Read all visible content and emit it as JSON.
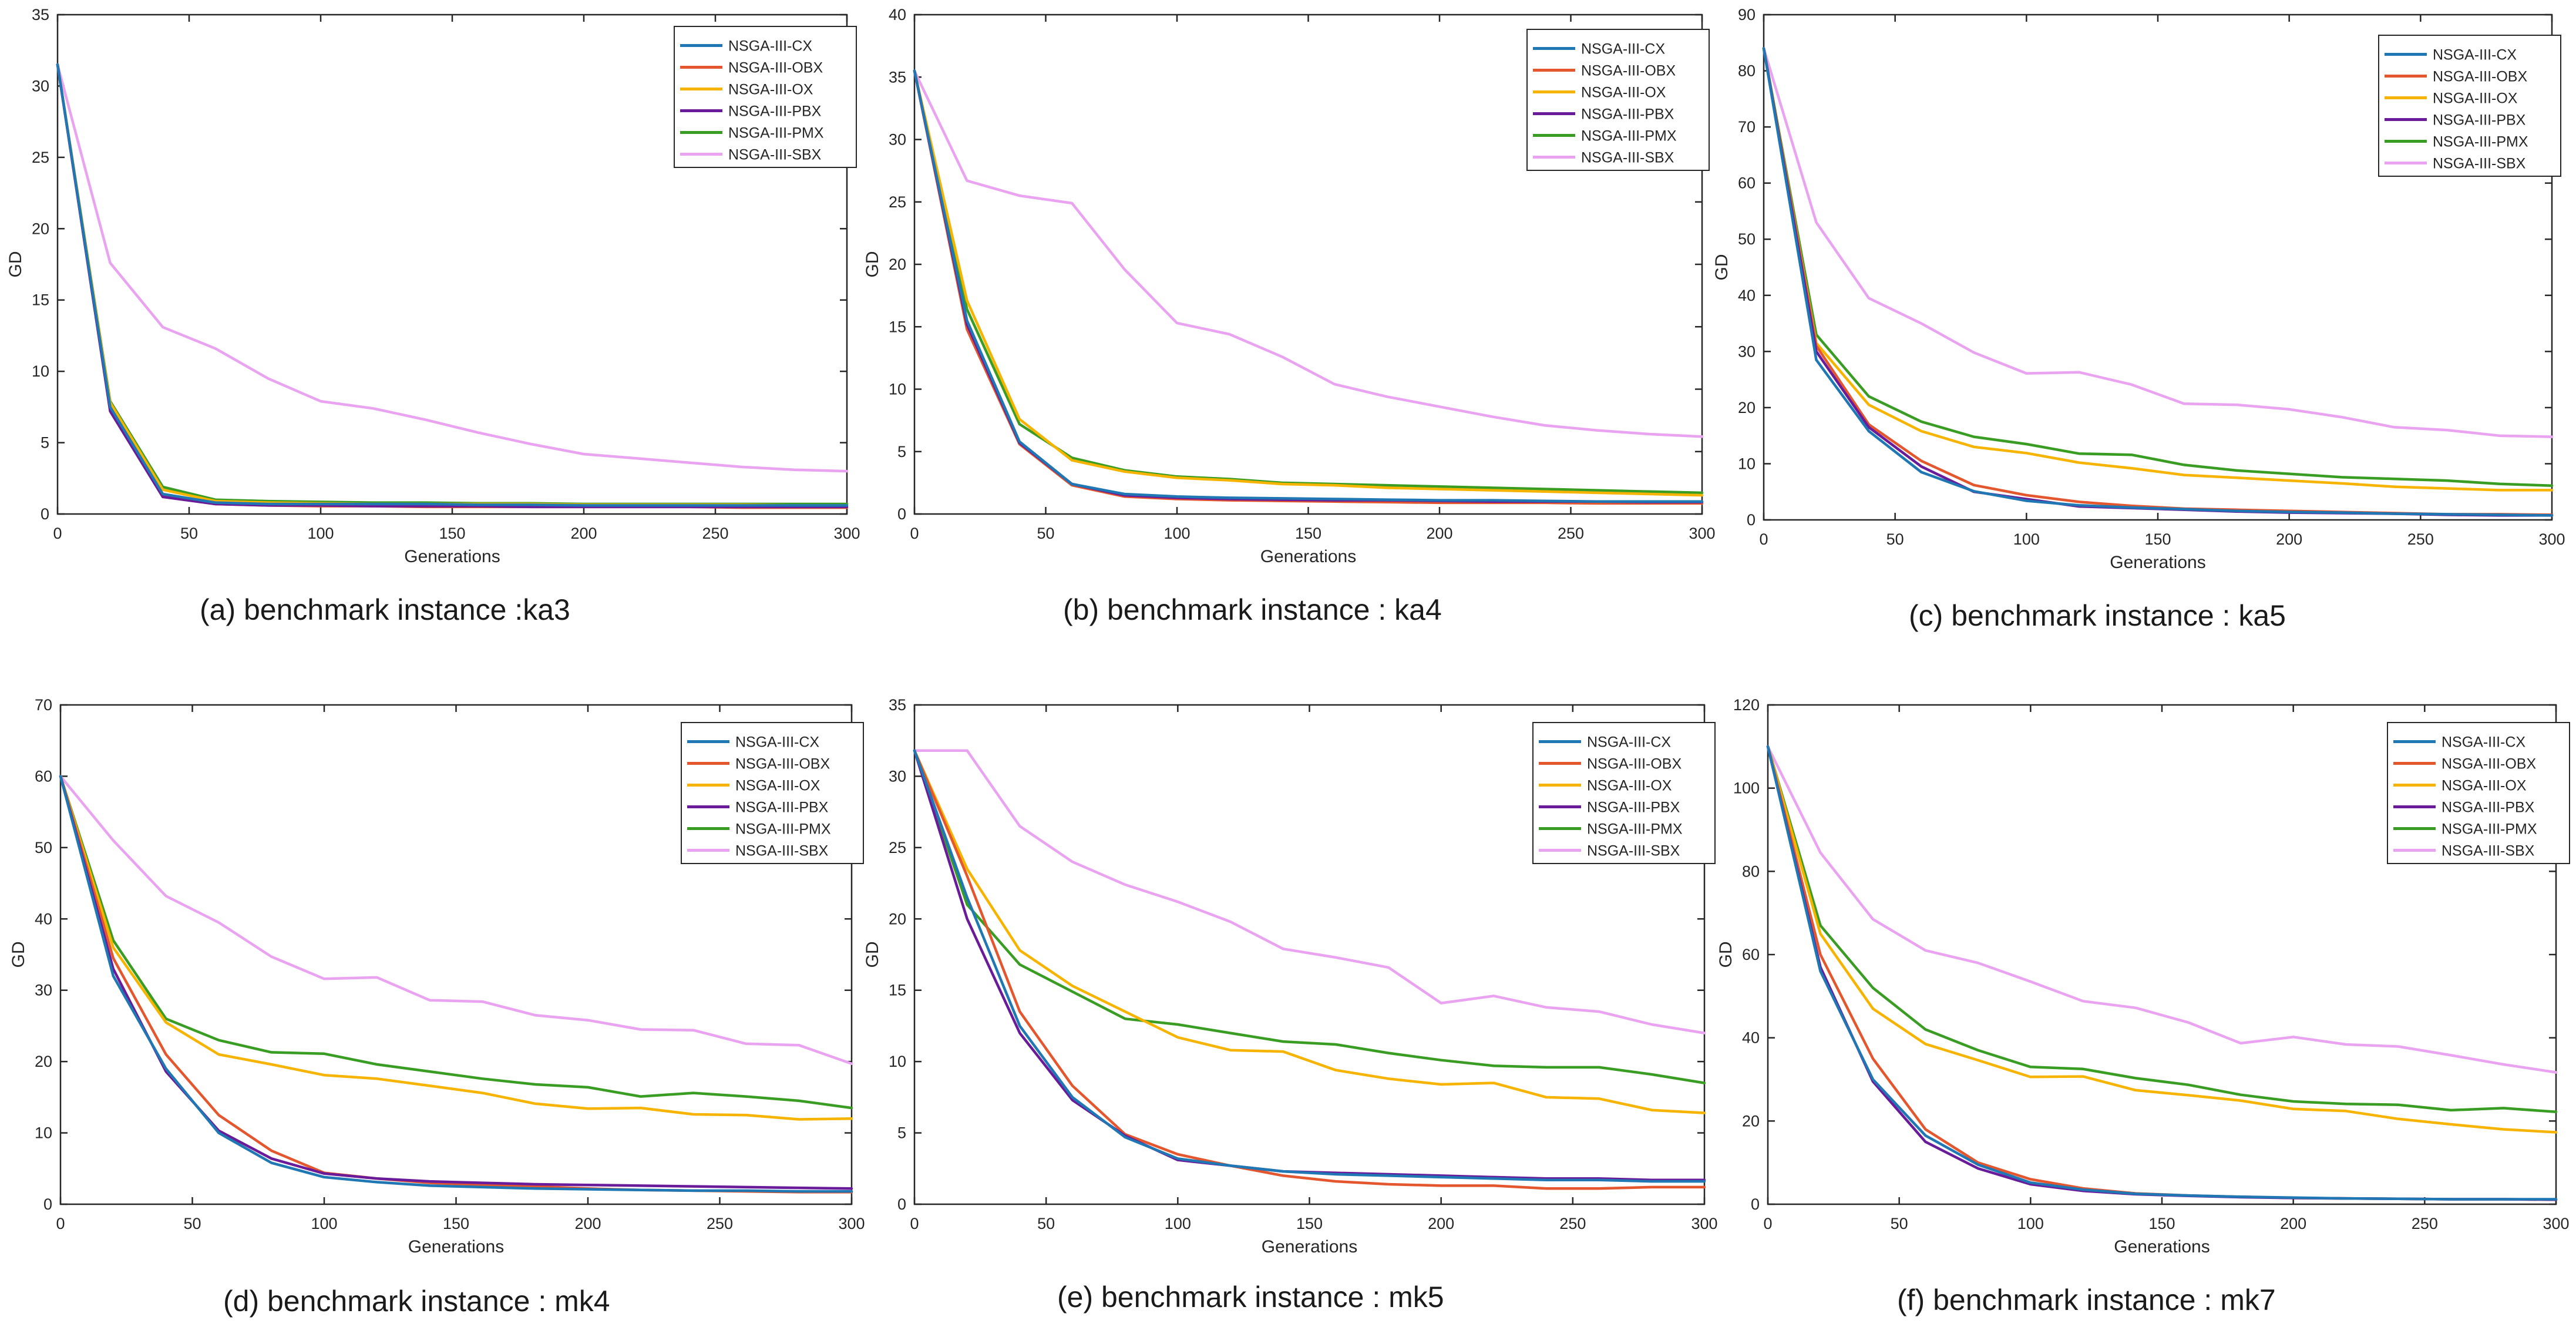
{
  "series_names": [
    "NSGA-III-CX",
    "NSGA-III-OBX",
    "NSGA-III-OX",
    "NSGA-III-PBX",
    "NSGA-III-PMX",
    "NSGA-III-SBX"
  ],
  "series_colors": [
    "#1f77b4",
    "#e4572e",
    "#f6b400",
    "#6a1b9a",
    "#3a9d23",
    "#e9a3f0"
  ],
  "chart_data": [
    {
      "type": "line",
      "caption": "(a)  benchmark instance :ka3",
      "xlabel": "Generations",
      "ylabel": "GD",
      "xlim": [
        0,
        300
      ],
      "ylim": [
        0,
        35
      ],
      "xticks": [
        0,
        50,
        100,
        150,
        200,
        250,
        300
      ],
      "yticks": [
        0,
        5,
        10,
        15,
        20,
        25,
        30,
        35
      ],
      "x": [
        0,
        20,
        40,
        60,
        80,
        100,
        120,
        140,
        160,
        180,
        200,
        220,
        240,
        260,
        280,
        300
      ],
      "series": [
        {
          "name": "NSGA-III-CX",
          "values": [
            31.5,
            7.5,
            1.4,
            0.8,
            0.7,
            0.7,
            0.7,
            0.7,
            0.65,
            0.65,
            0.6,
            0.6,
            0.6,
            0.6,
            0.6,
            0.6
          ]
        },
        {
          "name": "NSGA-III-OBX",
          "values": [
            31.5,
            7.3,
            1.3,
            0.7,
            0.6,
            0.55,
            0.55,
            0.5,
            0.5,
            0.5,
            0.5,
            0.5,
            0.5,
            0.45,
            0.45,
            0.45
          ]
        },
        {
          "name": "NSGA-III-OX",
          "values": [
            31.5,
            7.8,
            1.7,
            0.9,
            0.8,
            0.75,
            0.7,
            0.7,
            0.7,
            0.7,
            0.65,
            0.65,
            0.65,
            0.65,
            0.6,
            0.6
          ]
        },
        {
          "name": "NSGA-III-PBX",
          "values": [
            31.5,
            7.2,
            1.2,
            0.7,
            0.6,
            0.6,
            0.55,
            0.55,
            0.55,
            0.5,
            0.5,
            0.5,
            0.5,
            0.5,
            0.5,
            0.5
          ]
        },
        {
          "name": "NSGA-III-PMX",
          "values": [
            31.5,
            7.9,
            1.9,
            1.0,
            0.9,
            0.85,
            0.8,
            0.8,
            0.75,
            0.75,
            0.7,
            0.7,
            0.7,
            0.7,
            0.7,
            0.7
          ]
        },
        {
          "name": "NSGA-III-SBX",
          "values": [
            31.5,
            17.6,
            13.1,
            11.6,
            9.5,
            7.9,
            7.4,
            6.6,
            5.7,
            4.9,
            4.2,
            3.9,
            3.6,
            3.3,
            3.1,
            3.0
          ]
        }
      ]
    },
    {
      "type": "line",
      "caption": "(b)  benchmark instance : ka4",
      "xlabel": "Generations",
      "ylabel": "GD",
      "xlim": [
        0,
        300
      ],
      "ylim": [
        0,
        40
      ],
      "xticks": [
        0,
        50,
        100,
        150,
        200,
        250,
        300
      ],
      "yticks": [
        0,
        5,
        10,
        15,
        20,
        25,
        30,
        35,
        40
      ],
      "x": [
        0,
        20,
        40,
        60,
        80,
        100,
        120,
        140,
        160,
        180,
        200,
        220,
        240,
        260,
        280,
        300
      ],
      "series": [
        {
          "name": "NSGA-III-CX",
          "values": [
            35.5,
            15.5,
            5.8,
            2.4,
            1.6,
            1.4,
            1.3,
            1.25,
            1.2,
            1.15,
            1.1,
            1.1,
            1.05,
            1.0,
            1.0,
            1.0
          ]
        },
        {
          "name": "NSGA-III-OBX",
          "values": [
            35.5,
            14.8,
            5.6,
            2.3,
            1.4,
            1.2,
            1.1,
            1.05,
            1.0,
            0.95,
            0.9,
            0.9,
            0.9,
            0.85,
            0.85,
            0.85
          ]
        },
        {
          "name": "NSGA-III-OX",
          "values": [
            35.5,
            17.1,
            7.6,
            4.3,
            3.4,
            2.9,
            2.7,
            2.4,
            2.3,
            2.1,
            2.0,
            1.9,
            1.8,
            1.7,
            1.6,
            1.5
          ]
        },
        {
          "name": "NSGA-III-PBX",
          "values": [
            35.5,
            15.2,
            5.7,
            2.4,
            1.5,
            1.3,
            1.2,
            1.15,
            1.1,
            1.1,
            1.05,
            1.0,
            1.0,
            1.0,
            0.95,
            0.95
          ]
        },
        {
          "name": "NSGA-III-PMX",
          "values": [
            35.5,
            16.4,
            7.2,
            4.5,
            3.5,
            3.0,
            2.8,
            2.5,
            2.4,
            2.3,
            2.2,
            2.1,
            2.0,
            1.9,
            1.8,
            1.7
          ]
        },
        {
          "name": "NSGA-III-SBX",
          "values": [
            35.5,
            26.7,
            25.5,
            24.9,
            19.6,
            15.3,
            14.4,
            12.6,
            10.4,
            9.4,
            8.6,
            7.8,
            7.1,
            6.7,
            6.4,
            6.2
          ]
        }
      ]
    },
    {
      "type": "line",
      "caption": "(c)  benchmark instance : ka5",
      "xlabel": "Generations",
      "ylabel": "GD",
      "xlim": [
        0,
        300
      ],
      "ylim": [
        0,
        90
      ],
      "xticks": [
        0,
        50,
        100,
        150,
        200,
        250,
        300
      ],
      "yticks": [
        0,
        10,
        20,
        30,
        40,
        50,
        60,
        70,
        80,
        90
      ],
      "x": [
        0,
        20,
        40,
        60,
        80,
        100,
        120,
        140,
        160,
        180,
        200,
        220,
        240,
        260,
        280,
        300
      ],
      "series": [
        {
          "name": "NSGA-III-CX",
          "values": [
            84,
            28.5,
            15.8,
            8.5,
            5.1,
            3.4,
            2.6,
            2.2,
            1.9,
            1.6,
            1.4,
            1.3,
            1.1,
            1.0,
            0.9,
            0.8
          ]
        },
        {
          "name": "NSGA-III-OBX",
          "values": [
            84,
            31,
            17,
            10.5,
            6.2,
            4.4,
            3.2,
            2.5,
            2.0,
            1.8,
            1.6,
            1.4,
            1.2,
            1.0,
            1.0,
            0.9
          ]
        },
        {
          "name": "NSGA-III-OX",
          "values": [
            84,
            31.5,
            20.5,
            15.8,
            13.0,
            11.9,
            10.2,
            9.2,
            8.0,
            7.5,
            7.0,
            6.5,
            5.9,
            5.6,
            5.3,
            5.3
          ]
        },
        {
          "name": "NSGA-III-PBX",
          "values": [
            84,
            30,
            16.5,
            9.5,
            5.0,
            3.7,
            2.4,
            2.1,
            1.8,
            1.5,
            1.3,
            1.2,
            1.1,
            0.9,
            0.8,
            0.8
          ]
        },
        {
          "name": "NSGA-III-PMX",
          "values": [
            84,
            33,
            22,
            17.5,
            14.8,
            13.5,
            11.8,
            11.6,
            9.8,
            8.8,
            8.2,
            7.6,
            7.3,
            7.0,
            6.4,
            6.1
          ]
        },
        {
          "name": "NSGA-III-SBX",
          "values": [
            84,
            53,
            39.5,
            35,
            29.8,
            26.1,
            26.3,
            24.1,
            20.7,
            20.5,
            19.7,
            18.3,
            16.5,
            16.0,
            15.0,
            14.8
          ]
        }
      ]
    },
    {
      "type": "line",
      "caption": "(d)  benchmark instance : mk4",
      "xlabel": "Generations",
      "ylabel": "GD",
      "xlim": [
        0,
        300
      ],
      "ylim": [
        0,
        70
      ],
      "xticks": [
        0,
        50,
        100,
        150,
        200,
        250,
        300
      ],
      "yticks": [
        0,
        10,
        20,
        30,
        40,
        50,
        60,
        70
      ],
      "x": [
        0,
        20,
        40,
        60,
        80,
        100,
        120,
        140,
        160,
        180,
        200,
        220,
        240,
        260,
        280,
        300
      ],
      "series": [
        {
          "name": "NSGA-III-CX",
          "values": [
            60,
            32,
            19,
            10,
            5.8,
            3.8,
            3.1,
            2.6,
            2.4,
            2.2,
            2.1,
            2.0,
            1.9,
            1.9,
            1.8,
            1.8
          ]
        },
        {
          "name": "NSGA-III-OBX",
          "values": [
            60,
            34.5,
            21,
            12.5,
            7.5,
            4.4,
            3.6,
            3.0,
            2.7,
            2.5,
            2.2,
            2.0,
            1.9,
            1.8,
            1.7,
            1.7
          ]
        },
        {
          "name": "NSGA-III-OX",
          "values": [
            60,
            36,
            25.5,
            21,
            19.6,
            18.1,
            17.6,
            16.6,
            15.6,
            14.1,
            13.4,
            13.5,
            12.6,
            12.5,
            11.9,
            12.0
          ]
        },
        {
          "name": "NSGA-III-PBX",
          "values": [
            60,
            33,
            18.6,
            10.3,
            6.4,
            4.3,
            3.6,
            3.2,
            3.0,
            2.8,
            2.7,
            2.6,
            2.5,
            2.4,
            2.3,
            2.2
          ]
        },
        {
          "name": "NSGA-III-PMX",
          "values": [
            60,
            37,
            26,
            23,
            21.3,
            21.1,
            19.6,
            18.6,
            17.6,
            16.8,
            16.4,
            15.1,
            15.6,
            15.1,
            14.5,
            13.5
          ]
        },
        {
          "name": "NSGA-III-SBX",
          "values": [
            60,
            51,
            43.2,
            39.5,
            34.7,
            31.6,
            31.8,
            28.6,
            28.4,
            26.5,
            25.8,
            24.5,
            24.4,
            22.5,
            22.3,
            19.7
          ]
        }
      ]
    },
    {
      "type": "line",
      "caption": "(e)  benchmark instance : mk5",
      "xlabel": "Generations",
      "ylabel": "GD",
      "xlim": [
        0,
        300
      ],
      "ylim": [
        0,
        35
      ],
      "xticks": [
        0,
        50,
        100,
        150,
        200,
        250,
        300
      ],
      "yticks": [
        0,
        5,
        10,
        15,
        20,
        25,
        30,
        35
      ],
      "x": [
        0,
        20,
        40,
        60,
        80,
        100,
        120,
        140,
        160,
        180,
        200,
        220,
        240,
        260,
        280,
        300
      ],
      "series": [
        {
          "name": "NSGA-III-CX",
          "values": [
            31.8,
            21.5,
            12.5,
            7.5,
            4.7,
            3.2,
            2.7,
            2.3,
            2.1,
            2.0,
            1.9,
            1.8,
            1.7,
            1.7,
            1.6,
            1.6
          ]
        },
        {
          "name": "NSGA-III-OBX",
          "values": [
            31.8,
            23,
            13.5,
            8.3,
            4.9,
            3.5,
            2.7,
            2.0,
            1.6,
            1.4,
            1.3,
            1.3,
            1.1,
            1.1,
            1.2,
            1.2
          ]
        },
        {
          "name": "NSGA-III-OX",
          "values": [
            31.8,
            23.5,
            17.8,
            15.3,
            13.5,
            11.7,
            10.8,
            10.7,
            9.4,
            8.8,
            8.4,
            8.5,
            7.5,
            7.4,
            6.6,
            6.4
          ]
        },
        {
          "name": "NSGA-III-PBX",
          "values": [
            31.8,
            20,
            12,
            7.3,
            4.8,
            3.1,
            2.7,
            2.3,
            2.2,
            2.1,
            2.0,
            1.9,
            1.8,
            1.8,
            1.7,
            1.7
          ]
        },
        {
          "name": "NSGA-III-PMX",
          "values": [
            31.8,
            21,
            16.8,
            14.9,
            13,
            12.6,
            12.0,
            11.4,
            11.2,
            10.6,
            10.1,
            9.7,
            9.6,
            9.6,
            9.1,
            8.5
          ]
        },
        {
          "name": "NSGA-III-SBX",
          "values": [
            31.8,
            31.8,
            26.5,
            24,
            22.4,
            21.2,
            19.8,
            17.9,
            17.3,
            16.6,
            14.1,
            14.6,
            13.8,
            13.5,
            12.6,
            12.0
          ]
        }
      ]
    },
    {
      "type": "line",
      "caption": "(f)  benchmark instance : mk7",
      "xlabel": "Generations",
      "ylabel": "GD",
      "xlim": [
        0,
        300
      ],
      "ylim": [
        0,
        120
      ],
      "xticks": [
        0,
        50,
        100,
        150,
        200,
        250,
        300
      ],
      "yticks": [
        0,
        20,
        40,
        60,
        80,
        100,
        120
      ],
      "x": [
        0,
        20,
        40,
        60,
        80,
        100,
        120,
        140,
        160,
        180,
        200,
        220,
        240,
        260,
        280,
        300
      ],
      "series": [
        {
          "name": "NSGA-III-CX",
          "values": [
            110,
            56,
            30,
            16.5,
            9.5,
            5.2,
            3.5,
            2.5,
            2.1,
            1.8,
            1.6,
            1.4,
            1.3,
            1.2,
            1.2,
            1.2
          ]
        },
        {
          "name": "NSGA-III-OBX",
          "values": [
            110,
            60,
            35,
            18,
            10,
            6,
            3.8,
            2.6,
            2.1,
            1.8,
            1.5,
            1.4,
            1.3,
            1.2,
            1.2,
            1.1
          ]
        },
        {
          "name": "NSGA-III-OX",
          "values": [
            110,
            65,
            47,
            38.5,
            34.6,
            30.6,
            30.7,
            27.4,
            26.2,
            24.9,
            22.9,
            22.4,
            20.5,
            19.2,
            18.0,
            17.3
          ]
        },
        {
          "name": "NSGA-III-PBX",
          "values": [
            110,
            57,
            29.5,
            15,
            8.6,
            4.8,
            3.2,
            2.4,
            2.0,
            1.7,
            1.5,
            1.4,
            1.3,
            1.2,
            1.2,
            1.1
          ]
        },
        {
          "name": "NSGA-III-PMX",
          "values": [
            110,
            67,
            52,
            42,
            37,
            33,
            32.5,
            30.3,
            28.7,
            26.3,
            24.7,
            24.1,
            23.9,
            22.6,
            23.1,
            22.2
          ]
        },
        {
          "name": "NSGA-III-SBX",
          "values": [
            110,
            84.5,
            68.5,
            61,
            58,
            53.5,
            48.8,
            47.2,
            43.7,
            38.7,
            40.2,
            38.4,
            37.9,
            35.8,
            33.6,
            31.7
          ]
        }
      ]
    }
  ]
}
